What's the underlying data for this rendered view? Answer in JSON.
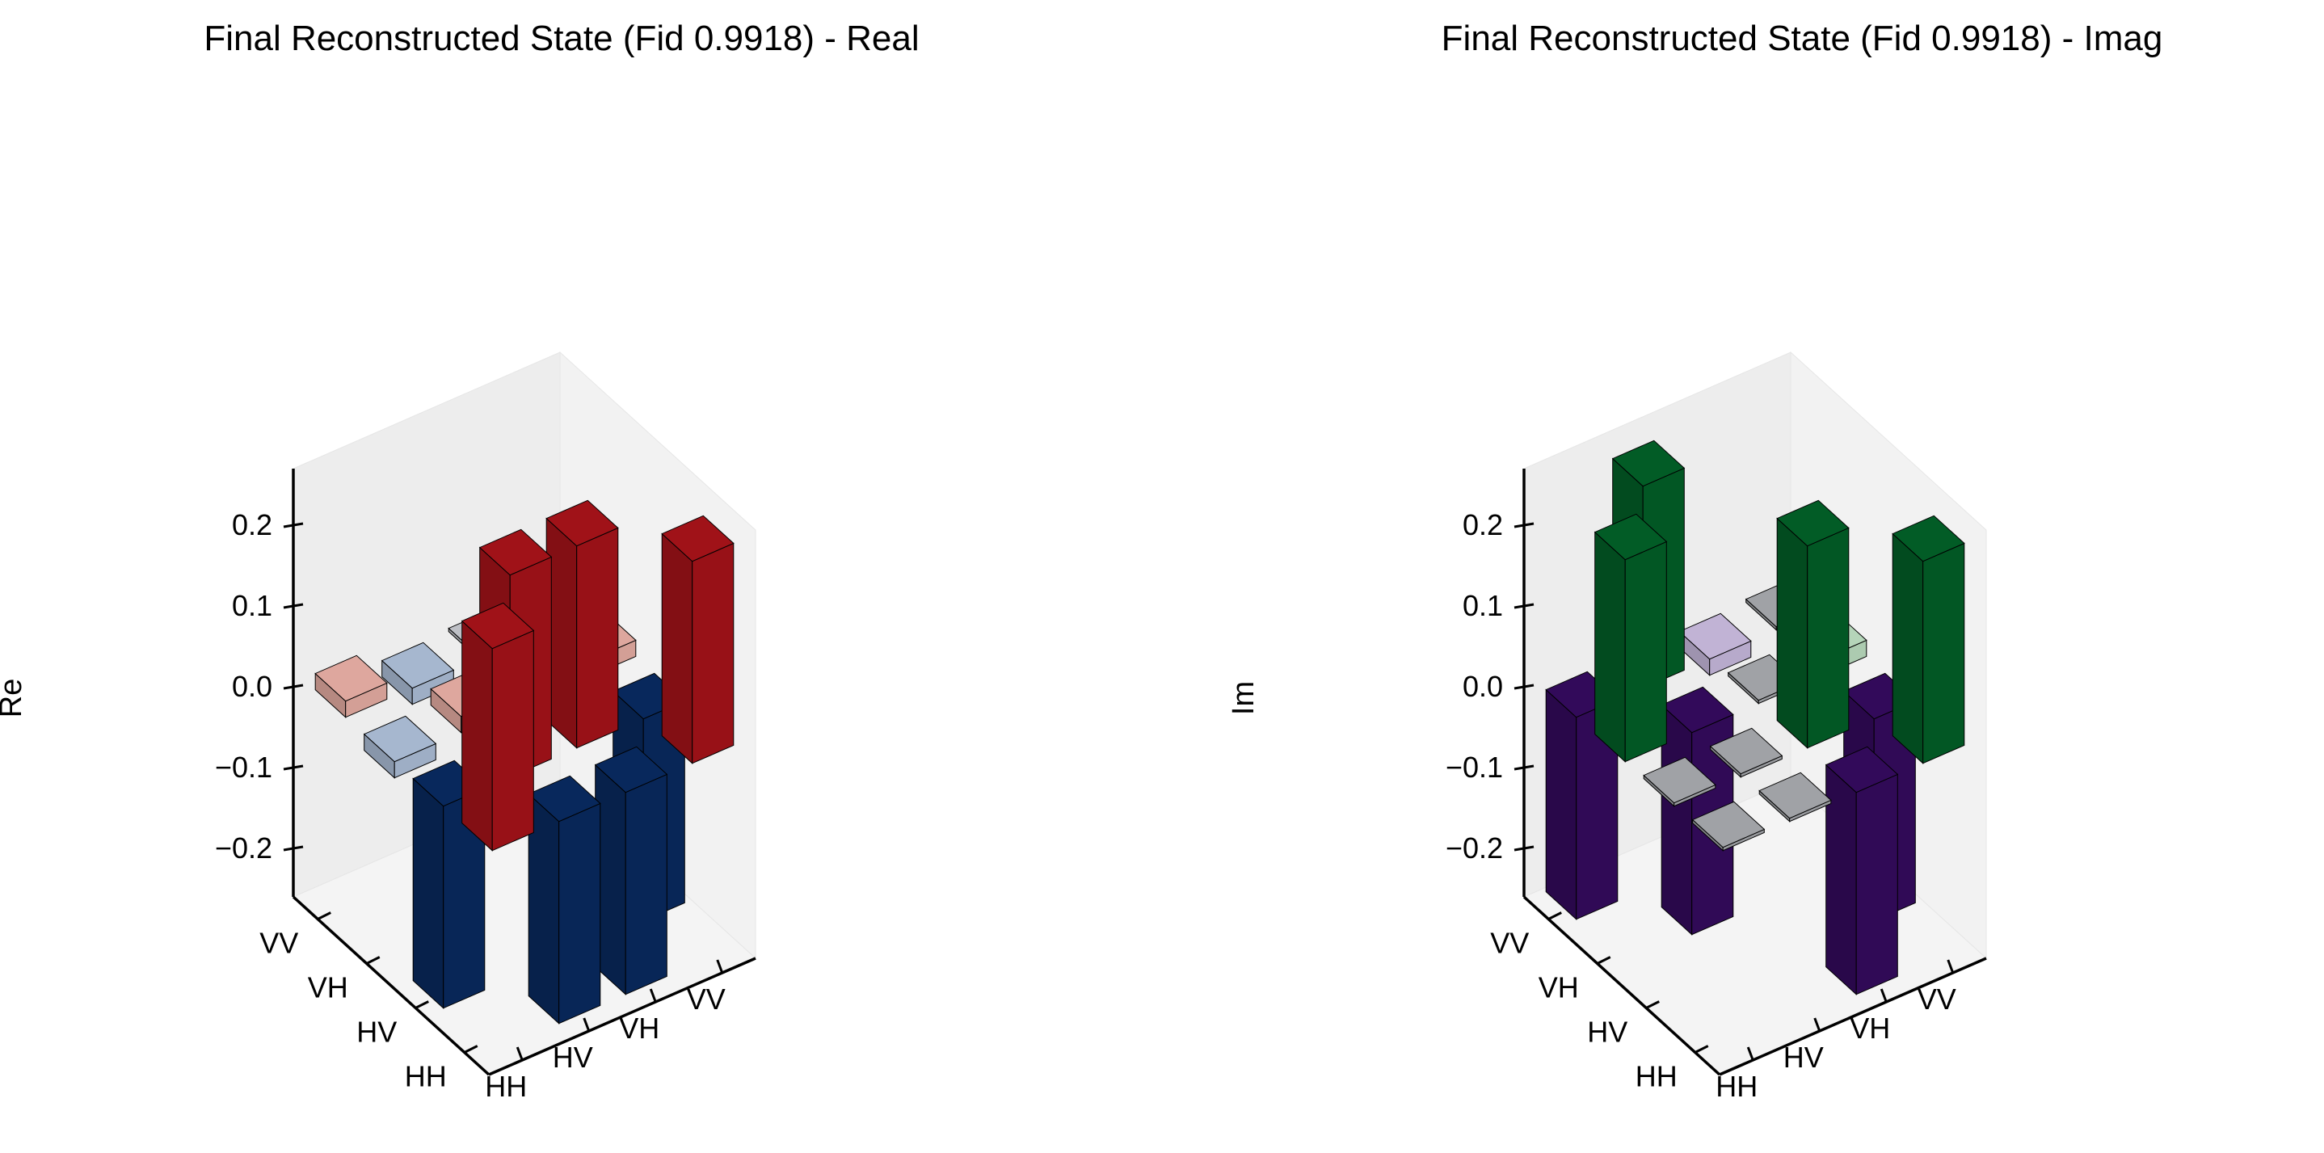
{
  "chart_data": [
    {
      "type": "bar3d",
      "title": "Final Reconstructed State (Fid 0.9918) - Real",
      "zlabel": "Re",
      "row_labels": [
        "HH",
        "HV",
        "VH",
        "VV"
      ],
      "col_labels": [
        "HH",
        "HV",
        "VH",
        "VV"
      ],
      "zticks": [
        -0.2,
        -0.1,
        0.0,
        0.1,
        0.2
      ],
      "zlim": [
        -0.26,
        0.27
      ],
      "matrix": [
        [
          0.25,
          -0.25,
          -0.25,
          0.25
        ],
        [
          -0.25,
          0.25,
          0.25,
          -0.25
        ],
        [
          -0.02,
          0.02,
          0.02,
          0.02
        ],
        [
          0.02,
          -0.02,
          0.0,
          0.0
        ]
      ]
    },
    {
      "type": "bar3d",
      "title": "Final Reconstructed State (Fid 0.9918) - Imag",
      "zlabel": "Im",
      "row_labels": [
        "HH",
        "HV",
        "VH",
        "VV"
      ],
      "col_labels": [
        "HH",
        "HV",
        "VH",
        "VV"
      ],
      "zticks": [
        -0.2,
        -0.1,
        0.0,
        0.1,
        0.2
      ],
      "zlim": [
        -0.26,
        0.27
      ],
      "matrix": [
        [
          0.0,
          0.0,
          -0.25,
          0.25
        ],
        [
          0.0,
          0.0,
          0.25,
          -0.25
        ],
        [
          0.25,
          -0.25,
          0.0,
          0.02
        ],
        [
          -0.25,
          0.25,
          -0.02,
          0.0
        ]
      ]
    }
  ]
}
